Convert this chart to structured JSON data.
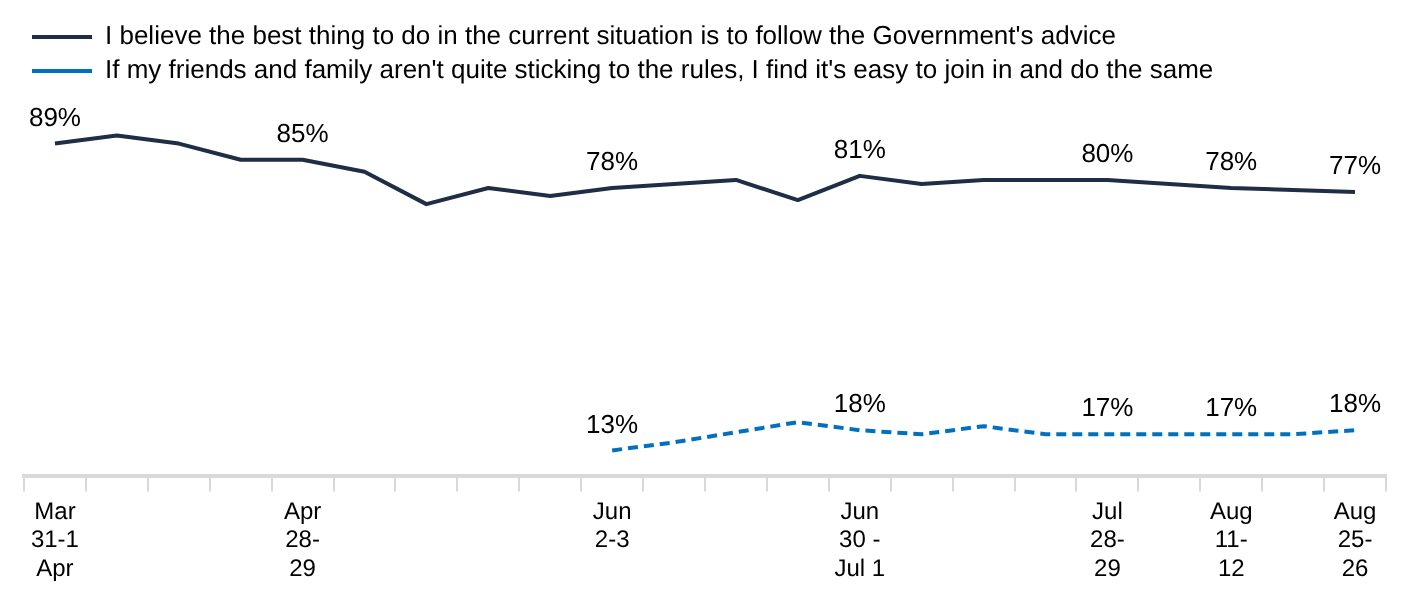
{
  "chart_data": {
    "type": "line",
    "categories": [
      "Mar\n31-1\nApr",
      null,
      null,
      null,
      "Apr\n28-\n29",
      null,
      null,
      null,
      null,
      "Jun\n2-3",
      null,
      null,
      null,
      "Jun\n30 -\nJul 1",
      null,
      null,
      null,
      "Jul\n28-\n29",
      null,
      "Aug\n11-\n12",
      null,
      "Aug\n25-\n26"
    ],
    "series": [
      {
        "name": "I believe the best thing to do in the current situation is to follow the Government's advice",
        "color": "#1f2d45",
        "line_style": "solid",
        "values": [
          89,
          91,
          89,
          85,
          85,
          82,
          74,
          78,
          76,
          78,
          79,
          80,
          75,
          81,
          79,
          80,
          80,
          80,
          79,
          78,
          77.5,
          77
        ],
        "value_labels": [
          "89%",
          null,
          null,
          null,
          "85%",
          null,
          null,
          null,
          null,
          "78%",
          null,
          null,
          null,
          "81%",
          null,
          null,
          null,
          "80%",
          null,
          "78%",
          null,
          "77%"
        ]
      },
      {
        "name": "If my friends and family aren't quite sticking to the rules, I find it's easy to join in and do the same",
        "color": "#0070c0",
        "line_style": "dashed",
        "values": [
          null,
          null,
          null,
          null,
          null,
          null,
          null,
          null,
          null,
          13,
          15,
          17.5,
          20,
          18,
          17,
          19,
          17,
          17,
          17,
          17,
          17,
          18
        ],
        "value_labels": [
          null,
          null,
          null,
          null,
          null,
          null,
          null,
          null,
          null,
          "13%",
          null,
          null,
          null,
          "18%",
          null,
          null,
          null,
          "17%",
          null,
          "17%",
          null,
          "18%"
        ]
      }
    ],
    "legend": "top left",
    "grid": false,
    "marker": "none"
  }
}
